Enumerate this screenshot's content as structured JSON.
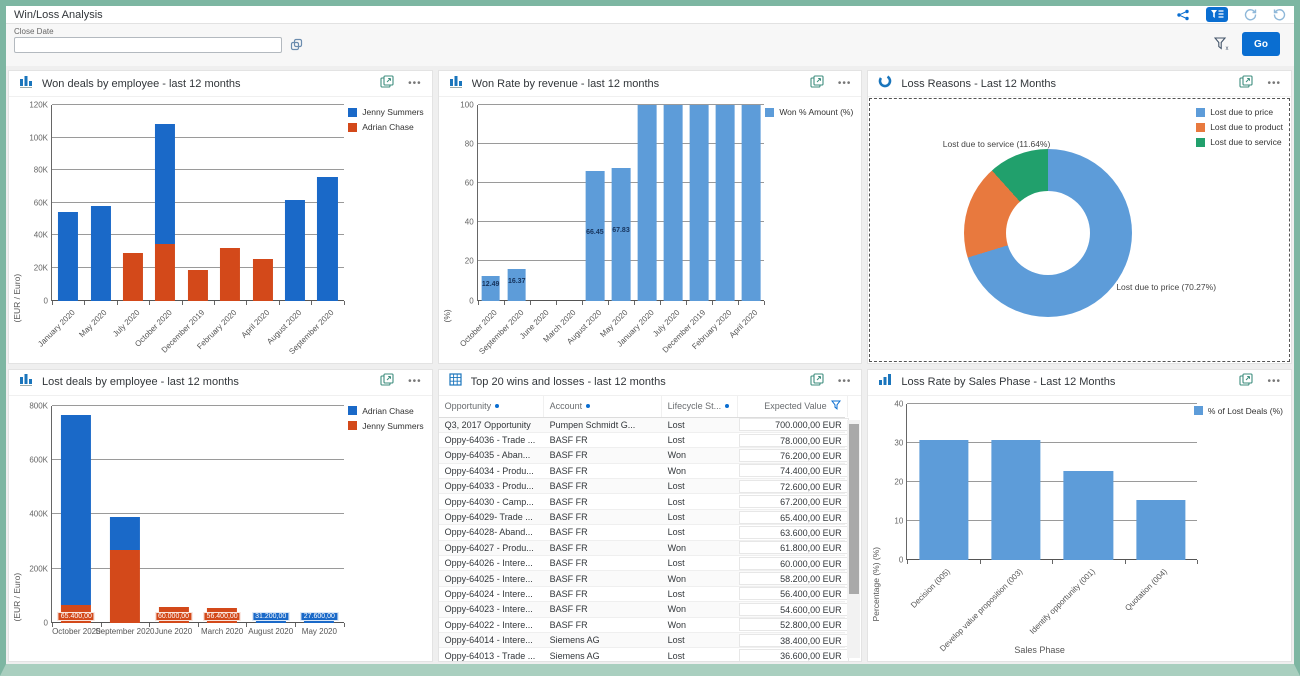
{
  "app": {
    "title": "Win/Loss Analysis"
  },
  "filter_bar": {
    "close_date_label": "Close Date",
    "close_date_value": "",
    "go_label": "Go"
  },
  "panels": [
    {
      "title": "Won deals by employee - last 12 months"
    },
    {
      "title": "Won Rate by revenue - last 12 months"
    },
    {
      "title": "Loss Reasons - Last 12 Months"
    },
    {
      "title": "Lost deals by employee - last 12 months"
    },
    {
      "title": "Top 20 wins and losses - last 12 months"
    },
    {
      "title": "Loss Rate by Sales Phase - Last 12 Months"
    }
  ],
  "colors": {
    "strong_blue": "#1a69c8",
    "red_orange": "#d3491a",
    "light_blue": "#5d9cd9",
    "donut_orange": "#e8793e",
    "donut_green": "#21a06c",
    "accent_blue": "#0a6ed1"
  },
  "chart_data": [
    {
      "type": "bar",
      "stacked": true,
      "title": "Won deals by employee - last 12 months",
      "ylabel": "(EUR / Euro)",
      "ylim": [
        0,
        120000
      ],
      "yticks": [
        {
          "label": "0",
          "v": 0
        },
        {
          "label": "20K",
          "v": 20000
        },
        {
          "label": "40K",
          "v": 40000
        },
        {
          "label": "60K",
          "v": 60000
        },
        {
          "label": "80K",
          "v": 80000
        },
        {
          "label": "100K",
          "v": 100000
        },
        {
          "label": "120K",
          "v": 120000
        }
      ],
      "categories": [
        "January 2020",
        "May 2020",
        "July 2020",
        "October 2020",
        "December 2019",
        "February 2020",
        "April 2020",
        "August 2020",
        "September 2020"
      ],
      "legend": [
        {
          "name": "Jenny Summers",
          "color": "#1a69c8"
        },
        {
          "name": "Adrian Chase",
          "color": "#d3491a"
        }
      ],
      "series": [
        {
          "name": "Adrian Chase",
          "color": "#d3491a",
          "values": [
            0,
            0,
            29000,
            34500,
            19000,
            32000,
            25500,
            0,
            0
          ]
        },
        {
          "name": "Jenny Summers",
          "color": "#1a69c8",
          "values": [
            54500,
            58000,
            0,
            74000,
            0,
            0,
            0,
            61500,
            76000
          ]
        }
      ]
    },
    {
      "type": "bar",
      "stacked": false,
      "title": "Won Rate by revenue - last 12 months",
      "ylabel": "(%)",
      "ylim": [
        0,
        100
      ],
      "yticks": [
        {
          "label": "0",
          "v": 0
        },
        {
          "label": "20",
          "v": 20
        },
        {
          "label": "40",
          "v": 40
        },
        {
          "label": "60",
          "v": 60
        },
        {
          "label": "80",
          "v": 80
        },
        {
          "label": "100",
          "v": 100
        }
      ],
      "categories": [
        "October 2020",
        "September 2020",
        "June 2020",
        "March 2020",
        "August 2020",
        "May 2020",
        "January 2020",
        "July 2020",
        "December 2019",
        "February 2020",
        "April 2020"
      ],
      "legend": [
        {
          "name": "Won % Amount (%)",
          "color": "#5d9cd9"
        }
      ],
      "series": [
        {
          "name": "Won % Amount (%)",
          "color": "#5d9cd9",
          "values": [
            12.49,
            16.37,
            0,
            0,
            66.45,
            67.83,
            100,
            100,
            100,
            100,
            100
          ],
          "labels": [
            "12.49",
            "16.37",
            "",
            "",
            "66.45",
            "67.83",
            "",
            "",
            "",
            "",
            ""
          ]
        }
      ],
      "label_pos": "center",
      "label_style": "dark"
    },
    {
      "type": "donut",
      "title": "Loss Reasons - Last 12 Months",
      "slices": [
        {
          "name": "Lost due to price",
          "pct": 70.27,
          "color": "#5d9cd9"
        },
        {
          "name": "Lost due to product",
          "pct": 18.09,
          "color": "#e8793e"
        },
        {
          "name": "Lost due to service",
          "pct": 11.64,
          "color": "#21a06c"
        }
      ],
      "point_labels": [
        "Lost due to service (11.64%)",
        "Lost due to price (70.27%)"
      ],
      "legend": [
        {
          "name": "Lost due to price",
          "color": "#5d9cd9"
        },
        {
          "name": "Lost due to product",
          "color": "#e8793e"
        },
        {
          "name": "Lost due to service",
          "color": "#21a06c"
        }
      ]
    },
    {
      "type": "bar",
      "stacked": true,
      "title": "Lost deals by employee - last 12 months",
      "ylabel": "(EUR / Euro)",
      "ylim": [
        0,
        800000
      ],
      "yticks": [
        {
          "label": "0",
          "v": 0
        },
        {
          "label": "200K",
          "v": 200000
        },
        {
          "label": "400K",
          "v": 400000
        },
        {
          "label": "600K",
          "v": 600000
        },
        {
          "label": "800K",
          "v": 800000
        }
      ],
      "categories": [
        "October 2020",
        "September 2020",
        "June 2020",
        "March 2020",
        "August 2020",
        "May 2020"
      ],
      "legend": [
        {
          "name": "Adrian Chase",
          "color": "#1a69c8"
        },
        {
          "name": "Jenny Summers",
          "color": "#d3491a"
        }
      ],
      "series": [
        {
          "name": "Jenny Summers",
          "color": "#d3491a",
          "values": [
            65400,
            270000,
            60000,
            56400,
            0,
            0
          ],
          "labels": [
            "65.400,00",
            "",
            "60.000,00",
            "56.400,00",
            "",
            ""
          ]
        },
        {
          "name": "Adrian Chase",
          "color": "#1a69c8",
          "values": [
            700000,
            120000,
            0,
            0,
            31200,
            27600
          ],
          "labels": [
            "",
            "",
            "",
            "",
            "31.200,00",
            "27.600,00"
          ]
        }
      ],
      "label_pos": "bottom",
      "label_style": "boxed",
      "xlabels_horizontal": true
    },
    {
      "type": "table",
      "title": "Top 20 wins and losses - last 12 months",
      "columns": [
        "Opportunity",
        "Account",
        "Lifecycle St...",
        "Expected Value"
      ],
      "rows": [
        [
          "Q3, 2017 Opportunity",
          "Pumpen Schmidt G...",
          "Lost",
          "700.000,00 EUR"
        ],
        [
          "Oppy-64036 - Trade ...",
          "BASF FR",
          "Lost",
          "78.000,00 EUR"
        ],
        [
          "Oppy-64035 - Aban...",
          "BASF FR",
          "Won",
          "76.200,00 EUR"
        ],
        [
          "Oppy-64034 - Produ...",
          "BASF FR",
          "Won",
          "74.400,00 EUR"
        ],
        [
          "Oppy-64033 - Produ...",
          "BASF FR",
          "Lost",
          "72.600,00 EUR"
        ],
        [
          "Oppy-64030 - Camp...",
          "BASF FR",
          "Lost",
          "67.200,00 EUR"
        ],
        [
          "Oppy-64029- Trade ...",
          "BASF FR",
          "Lost",
          "65.400,00 EUR"
        ],
        [
          "Oppy-64028- Aband...",
          "BASF FR",
          "Lost",
          "63.600,00 EUR"
        ],
        [
          "Oppy-64027 - Produ...",
          "BASF FR",
          "Won",
          "61.800,00 EUR"
        ],
        [
          "Oppy-64026 - Intere...",
          "BASF FR",
          "Lost",
          "60.000,00 EUR"
        ],
        [
          "Oppy-64025 - Intere...",
          "BASF FR",
          "Won",
          "58.200,00 EUR"
        ],
        [
          "Oppy-64024 - Intere...",
          "BASF FR",
          "Lost",
          "56.400,00 EUR"
        ],
        [
          "Oppy-64023 - Intere...",
          "BASF FR",
          "Won",
          "54.600,00 EUR"
        ],
        [
          "Oppy-64022 - Intere...",
          "BASF FR",
          "Won",
          "52.800,00 EUR"
        ],
        [
          "Oppy-64014 - Intere...",
          "Siemens AG",
          "Lost",
          "38.400,00 EUR"
        ],
        [
          "Oppy-64013 - Trade ...",
          "Siemens AG",
          "Lost",
          "36.600,00 EUR"
        ]
      ]
    },
    {
      "type": "bar",
      "stacked": false,
      "title": "Loss Rate by Sales Phase - Last 12 Months",
      "ylabel": "Percentage (%) (%)",
      "xlabel": "Sales Phase",
      "ylim": [
        0,
        40
      ],
      "yticks": [
        {
          "label": "0",
          "v": 0
        },
        {
          "label": "10",
          "v": 10
        },
        {
          "label": "20",
          "v": 20
        },
        {
          "label": "30",
          "v": 30
        },
        {
          "label": "40",
          "v": 40
        }
      ],
      "categories": [
        "Decision (005)",
        "Develop value proposition (003)",
        "Identify opportunity (001)",
        "Quotation (004)"
      ],
      "legend": [
        {
          "name": "% of Lost Deals (%)",
          "color": "#5d9cd9"
        }
      ],
      "series": [
        {
          "name": "% of Lost Deals (%)",
          "color": "#5d9cd9",
          "values": [
            30.7,
            30.7,
            22.7,
            15.3
          ]
        }
      ]
    }
  ]
}
